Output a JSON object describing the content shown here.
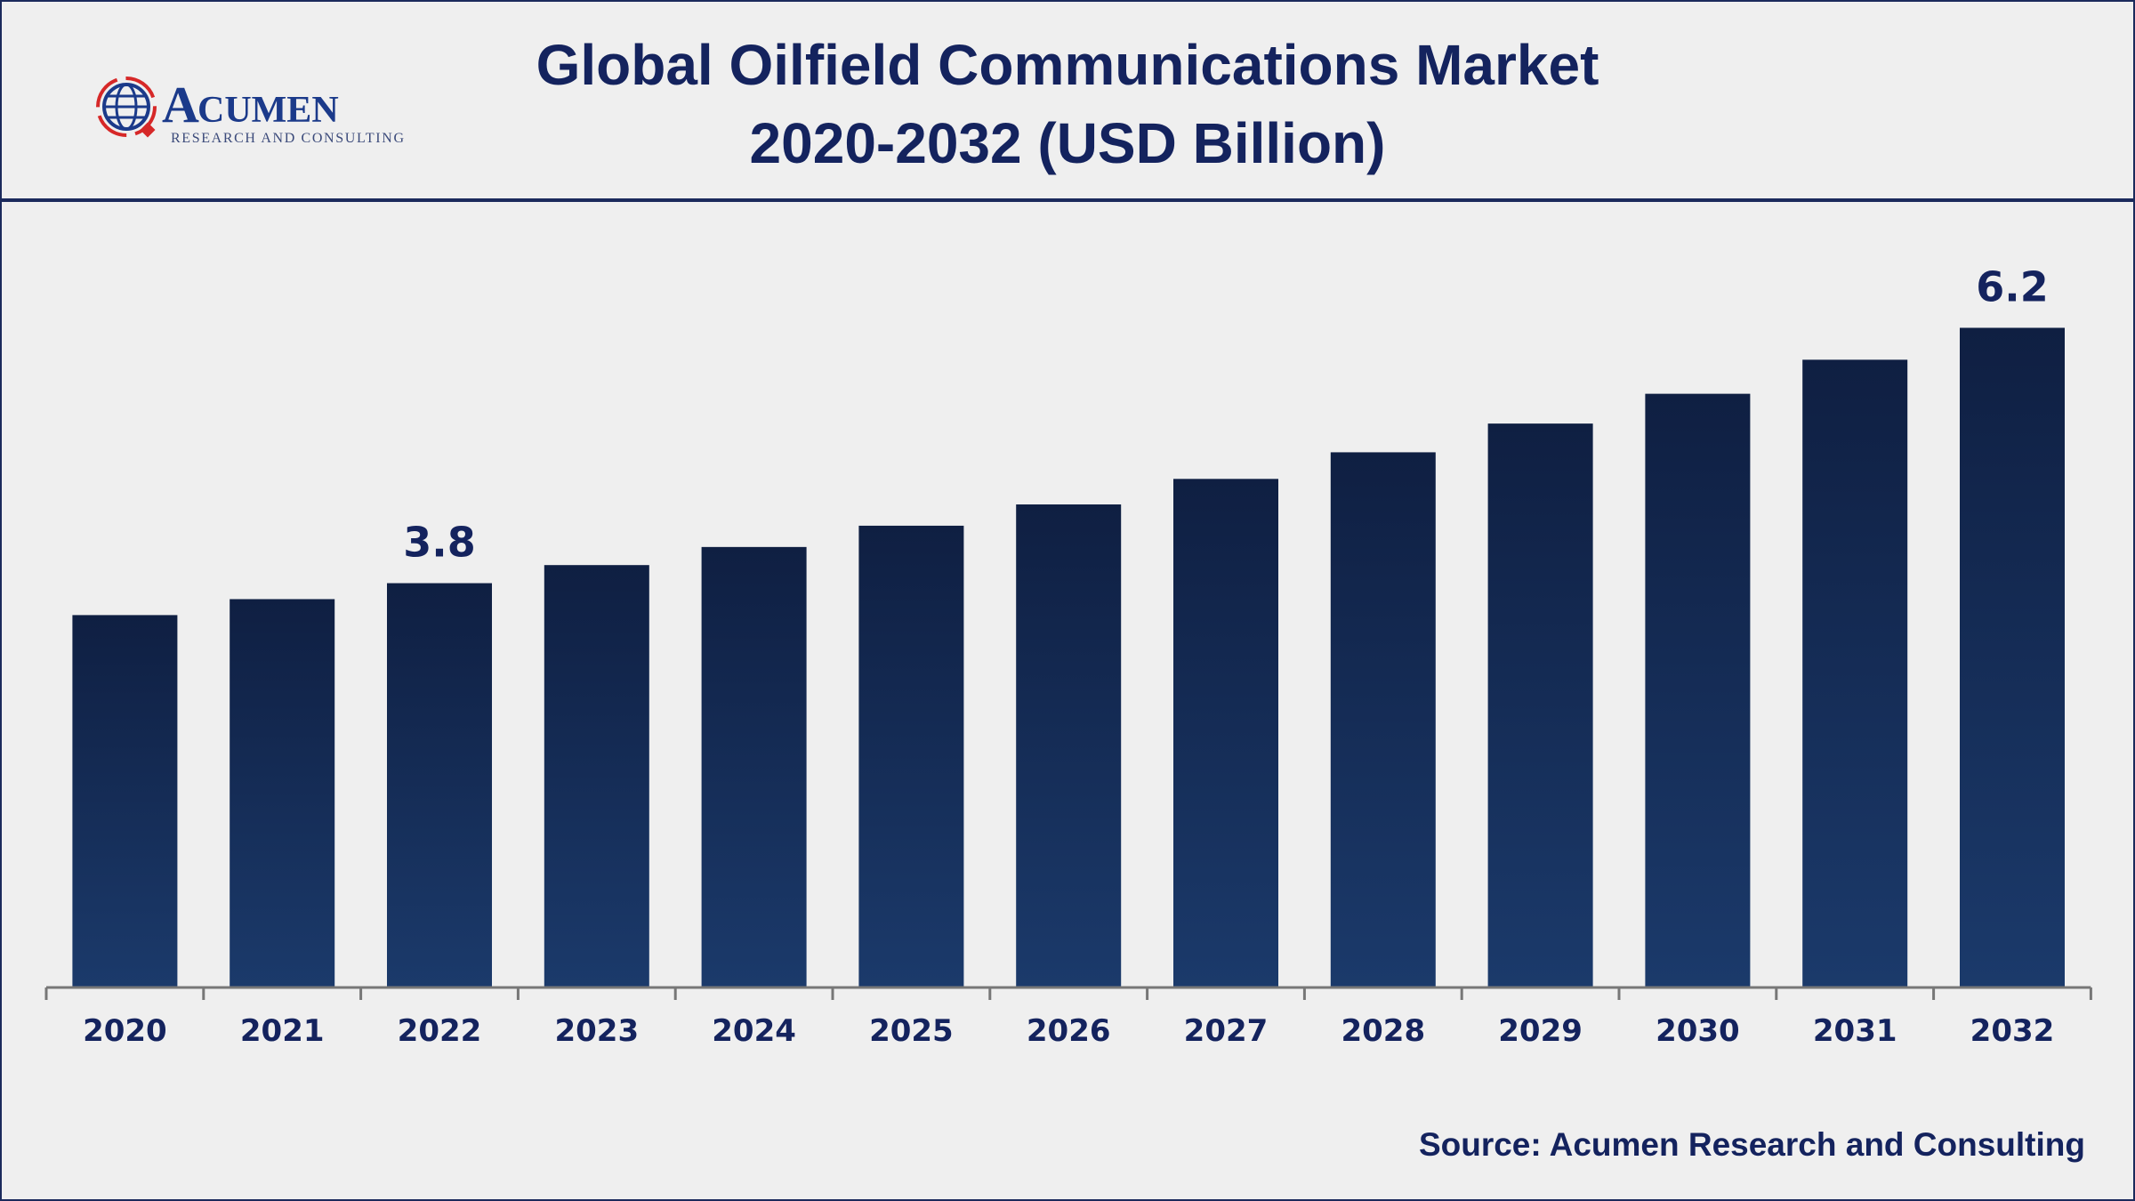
{
  "header": {
    "title_line1": "Global Oilfield Communications Market",
    "title_line2": "2020-2032 (USD Billion)",
    "logo_text": "ACUMEN",
    "logo_subtext": "RESEARCH AND CONSULTING"
  },
  "source": "Source: Acumen Research and Consulting",
  "colors": {
    "bar_top": "#0f1f42",
    "bar_bottom": "#1b3a6b",
    "text": "#14235e",
    "logo_red": "#d62828"
  },
  "chart_data": {
    "type": "bar",
    "title": "Global Oilfield Communications Market 2020-2032 (USD Billion)",
    "categories": [
      "2020",
      "2021",
      "2022",
      "2023",
      "2024",
      "2025",
      "2026",
      "2027",
      "2028",
      "2029",
      "2030",
      "2031",
      "2032"
    ],
    "values": [
      3.5,
      3.65,
      3.8,
      3.97,
      4.14,
      4.34,
      4.54,
      4.78,
      5.03,
      5.3,
      5.58,
      5.9,
      6.2
    ],
    "data_labels": {
      "2022": "3.8",
      "2032": "6.2"
    },
    "xlabel": "",
    "ylabel": "",
    "ylim": [
      0,
      6.5
    ],
    "grid": false,
    "legend": "none"
  }
}
